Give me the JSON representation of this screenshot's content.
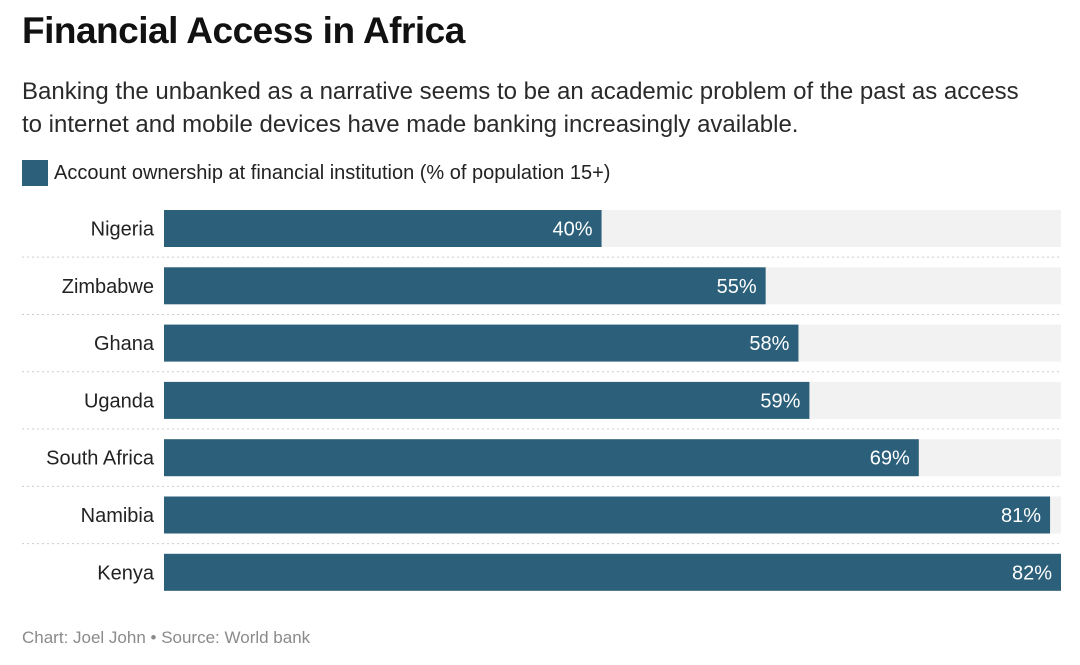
{
  "header": {
    "title": "Financial Access in Africa",
    "subtitle": "Banking the unbanked as a narrative seems to be an academic problem of the past as access to internet and mobile devices have made banking increasingly available."
  },
  "legend": {
    "label": "Account ownership at financial institution (% of population 15+)",
    "color": "#2b5f7a"
  },
  "footer": {
    "credit": "Chart: Joel John • Source: World bank"
  },
  "colors": {
    "bar": "#2b5f7a",
    "track": "#f2f2f2",
    "divider": "#cccccc"
  },
  "chart_data": {
    "type": "bar",
    "orientation": "horizontal",
    "categories": [
      "Nigeria",
      "Zimbabwe",
      "Ghana",
      "Uganda",
      "South Africa",
      "Namibia",
      "Kenya"
    ],
    "values": [
      40,
      55,
      58,
      59,
      69,
      81,
      82
    ],
    "value_suffix": "%",
    "series_name": "Account ownership at financial institution (% of population 15+)",
    "xlim": [
      0,
      82
    ],
    "grid": false
  }
}
